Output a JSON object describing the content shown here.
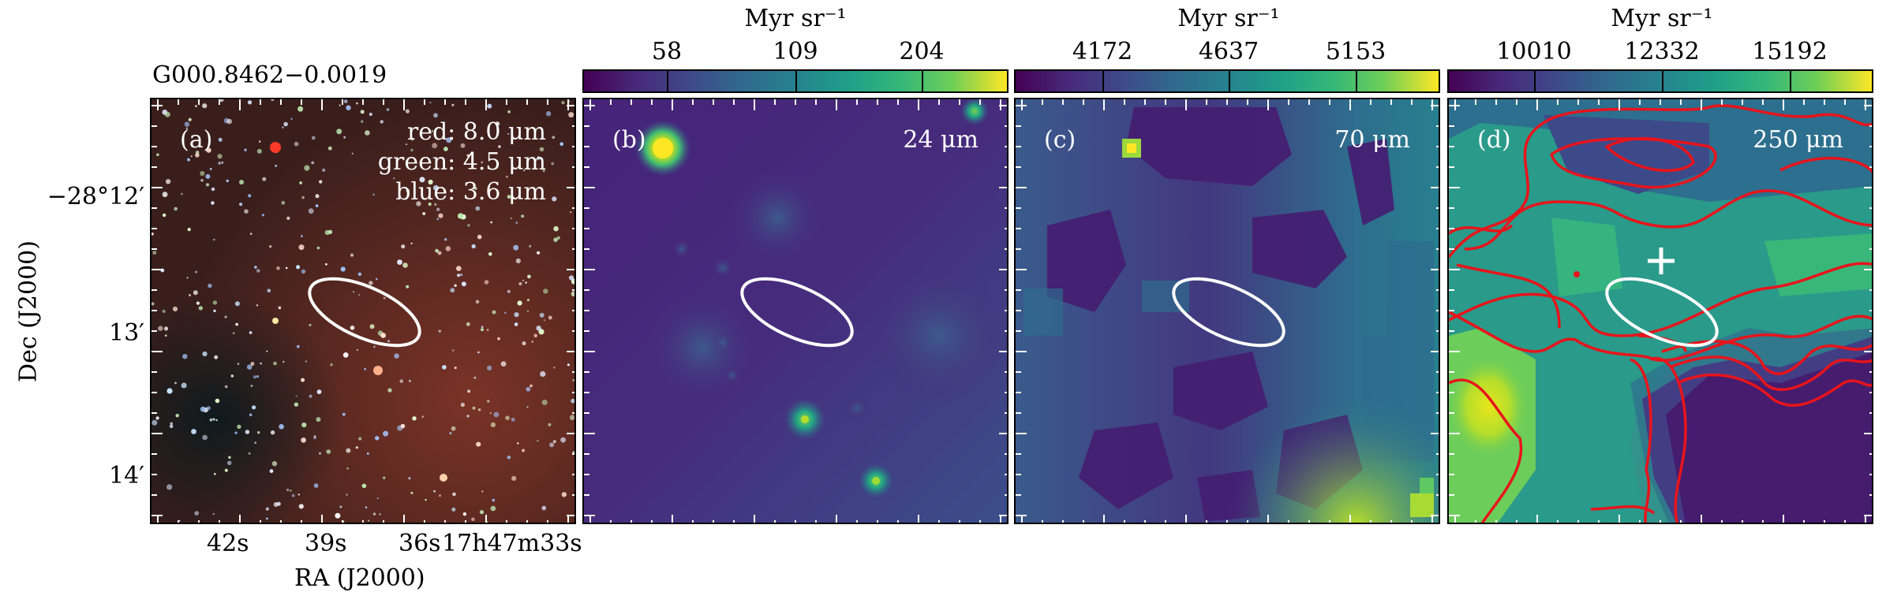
{
  "source_name": "G000.8462−0.0019",
  "y_axis_label": "Dec (J2000)",
  "x_axis_label": "RA (J2000)",
  "dec_ticks": [
    "−28°12′",
    "13′",
    "14′"
  ],
  "ra_ticks": [
    "42s",
    "39s",
    "36s",
    "17h47m33s"
  ],
  "colorbar_unit": "Myr sr⁻¹",
  "panels": [
    {
      "label": "(a)",
      "rgb_key": {
        "red": "red: 8.0 μm",
        "green": "green: 4.5 μm",
        "blue": "blue: 3.6 μm"
      }
    },
    {
      "label": "(b)",
      "wavelength": "24 μm",
      "colorbar_ticks": [
        "58",
        "109",
        "204"
      ]
    },
    {
      "label": "(c)",
      "wavelength": "70 μm",
      "colorbar_ticks": [
        "4172",
        "4637",
        "5153"
      ]
    },
    {
      "label": "(d)",
      "wavelength": "250 μm",
      "colorbar_ticks": [
        "10010",
        "12332",
        "15192"
      ]
    }
  ],
  "colors": {
    "ellipse": "#ffffff",
    "contour": "#e8141b",
    "colormap": "viridis"
  }
}
